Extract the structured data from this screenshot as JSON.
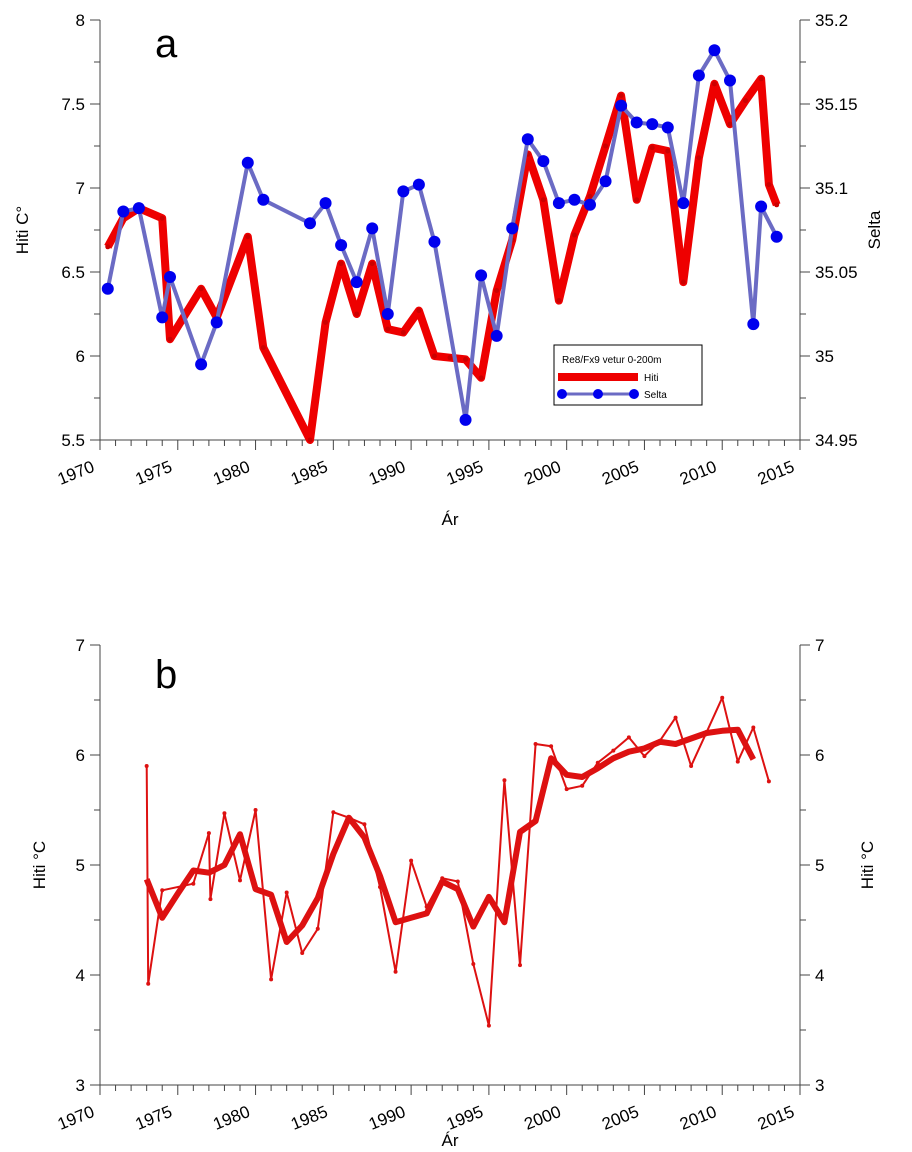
{
  "chart_data": [
    {
      "panel_label": "a",
      "type": "line",
      "xlabel": "Ár",
      "ylabel_left": "Hiti C°",
      "ylabel_right": "Selta",
      "xlim": [
        1970,
        2015
      ],
      "xticks": [
        1970,
        1975,
        1980,
        1985,
        1990,
        1995,
        2000,
        2005,
        2010,
        2015
      ],
      "ylim_left": [
        5.5,
        8
      ],
      "yticks_left": [
        "5.5",
        "6",
        "6.5",
        "7",
        "7.5",
        "8"
      ],
      "ylim_right": [
        34.95,
        35.2
      ],
      "yticks_right": [
        "34.95",
        "35",
        "35.05",
        "35.1",
        "35.15",
        "35.2"
      ],
      "legend": {
        "title": "Re8/Fx9 vetur 0-200m",
        "position": "lower-right inside",
        "entries": [
          "Hiti",
          "Selta"
        ]
      },
      "series": [
        {
          "name": "Hiti",
          "axis": "left",
          "color": "#ee0000",
          "x": [
            1970.5,
            1971.5,
            1972.5,
            1974,
            1974.5,
            1976.5,
            1977.5,
            1979.5,
            1980.5,
            1983.5,
            1984.5,
            1985.5,
            1986.5,
            1987.5,
            1988.5,
            1989.5,
            1990.5,
            1991.5,
            1992.5,
            1993.5,
            1994.5,
            1995.5,
            1996.5,
            1997.5,
            1998.5,
            1999.5,
            2000.5,
            2001.5,
            2002.5,
            2003.5,
            2004.5,
            2005.5,
            2006.5,
            2007.5,
            2008.5,
            2009.5,
            2010.5,
            2011.5,
            2012.5,
            2013,
            2013.5
          ],
          "values": [
            6.65,
            6.82,
            6.88,
            6.82,
            6.1,
            6.4,
            6.23,
            6.71,
            6.05,
            5.5,
            6.2,
            6.55,
            6.25,
            6.55,
            6.16,
            6.14,
            6.27,
            6.0,
            5.99,
            5.98,
            5.87,
            6.39,
            6.69,
            7.2,
            6.93,
            6.33,
            6.72,
            6.95,
            7.25,
            7.55,
            6.93,
            7.24,
            7.22,
            6.44,
            7.18,
            7.62,
            7.38,
            7.52,
            7.65,
            7.02,
            6.9
          ]
        },
        {
          "name": "Selta",
          "axis": "right",
          "color": "#6b6bc4",
          "marker_color": "#0000ee",
          "x": [
            1970.5,
            1971.5,
            1972.5,
            1974,
            1974.5,
            1976.5,
            1977.5,
            1979.5,
            1980.5,
            1983.5,
            1984.5,
            1985.5,
            1986.5,
            1987.5,
            1988.5,
            1989.5,
            1990.5,
            1991.5,
            1993.5,
            1994.5,
            1995.5,
            1996.5,
            1997.5,
            1998.5,
            1999.5,
            2000.5,
            2001.5,
            2002.5,
            2003.5,
            2004.5,
            2005.5,
            2006.5,
            2007.5,
            2008.5,
            2009.5,
            2010.5,
            2012,
            2012.5,
            2013.5
          ],
          "values": [
            35.04,
            35.086,
            35.088,
            35.023,
            35.047,
            34.995,
            35.02,
            35.115,
            35.093,
            35.079,
            35.091,
            35.066,
            35.044,
            35.076,
            35.025,
            35.098,
            35.102,
            35.068,
            34.962,
            35.048,
            35.012,
            35.076,
            35.129,
            35.116,
            35.091,
            35.093,
            35.09,
            35.104,
            35.149,
            35.139,
            35.138,
            35.136,
            35.091,
            35.167,
            35.182,
            35.164,
            35.019,
            35.089,
            35.071
          ]
        }
      ]
    },
    {
      "panel_label": "b",
      "type": "line",
      "xlabel": "Ár",
      "ylabel_left": "Hiti °C",
      "ylabel_right": "Hiti °C",
      "xlim": [
        1970,
        2015
      ],
      "xticks": [
        1970,
        1975,
        1980,
        1985,
        1990,
        1995,
        2000,
        2005,
        2010,
        2015
      ],
      "ylim_left": [
        3,
        7
      ],
      "yticks_left": [
        "3",
        "4",
        "5",
        "6",
        "7"
      ],
      "ylim_right": [
        3,
        7
      ],
      "yticks_right": [
        "3",
        "4",
        "5",
        "6",
        "7"
      ],
      "series": [
        {
          "color": "#dd1111",
          "style": "thin",
          "x": [
            1973,
            1973.1,
            1974,
            1976,
            1977,
            1977.1,
            1978,
            1979,
            1980,
            1981,
            1982,
            1983,
            1984,
            1985,
            1986,
            1987,
            1988,
            1989,
            1990,
            1991,
            1992,
            1993,
            1994,
            1995,
            1996,
            1997,
            1998,
            1999,
            2000,
            2001,
            2002,
            2003,
            2004,
            2005,
            2006,
            2007,
            2008,
            2009,
            2010,
            2011,
            2012,
            2013
          ],
          "values": [
            5.9,
            3.92,
            4.77,
            4.83,
            5.29,
            4.69,
            5.47,
            4.86,
            5.5,
            3.96,
            4.75,
            4.2,
            4.42,
            5.48,
            5.43,
            5.37,
            4.8,
            4.03,
            5.04,
            4.62,
            4.88,
            4.85,
            4.1,
            3.54,
            5.77,
            4.09,
            6.1,
            6.08,
            5.69,
            5.72,
            5.93,
            6.04,
            6.16,
            5.99,
            6.13,
            6.34,
            5.9,
            6.21,
            6.52,
            5.94,
            6.25,
            5.76
          ]
        },
        {
          "color": "#dd1111",
          "style": "thick",
          "x": [
            1973,
            1974,
            1975,
            1976,
            1977,
            1978,
            1979,
            1980,
            1981,
            1982,
            1983,
            1984,
            1985,
            1986,
            1987,
            1988,
            1989,
            1990,
            1991,
            1992,
            1993,
            1994,
            1995,
            1996,
            1997,
            1998,
            1999,
            2000,
            2001,
            2002,
            2003,
            2004,
            2005,
            2006,
            2007,
            2008,
            2009,
            2010,
            2011,
            2012
          ],
          "values": [
            4.87,
            4.52,
            4.74,
            4.95,
            4.93,
            5.0,
            5.28,
            4.78,
            4.73,
            4.3,
            4.45,
            4.7,
            5.1,
            5.43,
            5.25,
            4.9,
            4.48,
            4.52,
            4.56,
            4.85,
            4.78,
            4.44,
            4.71,
            4.48,
            5.3,
            5.4,
            5.97,
            5.82,
            5.8,
            5.88,
            5.97,
            6.03,
            6.06,
            6.12,
            6.1,
            6.15,
            6.2,
            6.22,
            6.23,
            5.96
          ]
        }
      ]
    }
  ]
}
